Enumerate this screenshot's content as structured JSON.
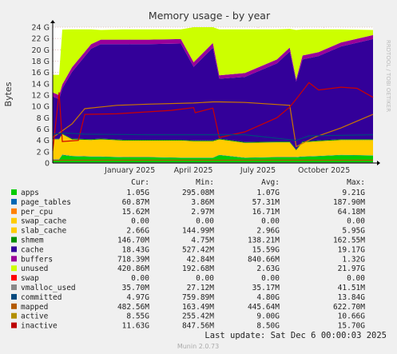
{
  "chart_data": {
    "type": "area",
    "title": "Memory usage - by year",
    "ylabel": "Bytes",
    "watermark": "RRDTOOL / TOBI OETIKER",
    "ylim": [
      0,
      24
    ],
    "y_ticks": [
      "0",
      "2 G",
      "4 G",
      "6 G",
      "8 G",
      "10 G",
      "12 G",
      "14 G",
      "16 G",
      "18 G",
      "20 G",
      "22 G",
      "24 G"
    ],
    "y_tick_values": [
      0,
      2,
      4,
      6,
      8,
      10,
      12,
      14,
      16,
      18,
      20,
      22,
      24
    ],
    "x_ticks": [
      {
        "label": "January 2025",
        "pos": 0.241
      },
      {
        "label": "April 2025",
        "pos": 0.439
      },
      {
        "label": "July 2025",
        "pos": 0.641
      },
      {
        "label": "October 2025",
        "pos": 0.847
      }
    ],
    "stacked_points_x": [
      0,
      0.02,
      0.03,
      0.06,
      0.12,
      0.15,
      0.22,
      0.3,
      0.4,
      0.44,
      0.5,
      0.52,
      0.6,
      0.7,
      0.74,
      0.76,
      0.78,
      0.83,
      0.9,
      1
    ],
    "stacked_series": [
      {
        "key": "apps",
        "color": "#00cc00",
        "values": [
          0.6,
          0.6,
          1.4,
          1.2,
          1.1,
          1.1,
          1.0,
          1.0,
          0.9,
          0.9,
          0.9,
          1.4,
          0.9,
          1.0,
          1.0,
          1.0,
          1.1,
          1.2,
          1.4,
          1.3
        ]
      },
      {
        "key": "page_tables",
        "color": "#0066b3",
        "values": [
          0.08,
          0.08,
          0.08,
          0.06,
          0.06,
          0.06,
          0.06,
          0.06,
          0.06,
          0.06,
          0.06,
          0.06,
          0.06,
          0.06,
          0.06,
          0.06,
          0.06,
          0.06,
          0.06,
          0.06
        ]
      },
      {
        "key": "slab_cache",
        "color": "#ffcc00",
        "values": [
          3.5,
          3.5,
          3.6,
          2.9,
          2.9,
          3.0,
          2.9,
          2.9,
          3.0,
          2.9,
          2.9,
          2.7,
          2.6,
          2.6,
          2.6,
          1.2,
          2.5,
          2.6,
          2.6,
          2.7
        ]
      },
      {
        "key": "shmem",
        "color": "#008f00",
        "values": [
          0.1,
          0.1,
          0.1,
          0.14,
          0.14,
          0.14,
          0.14,
          0.14,
          0.14,
          0.14,
          0.14,
          0.14,
          0.14,
          0.14,
          0.14,
          0.14,
          0.14,
          0.14,
          0.14,
          0.14
        ]
      },
      {
        "key": "cache",
        "color": "#330099",
        "values": [
          7.5,
          7.0,
          8.0,
          11.8,
          16.0,
          16.7,
          16.9,
          16.9,
          17.0,
          13.0,
          16.4,
          10.6,
          11.5,
          13.8,
          15.9,
          12.0,
          14.5,
          14.9,
          16.4,
          17.7
        ]
      },
      {
        "key": "buffers",
        "color": "#990099",
        "values": [
          0.7,
          0.7,
          0.7,
          0.8,
          0.8,
          0.8,
          0.8,
          0.8,
          0.8,
          0.8,
          0.8,
          0.6,
          0.7,
          0.7,
          0.7,
          0.4,
          0.7,
          0.7,
          0.7,
          0.7
        ]
      },
      {
        "key": "unused",
        "color": "#ccff00",
        "values": [
          3.1,
          3.6,
          9.7,
          6.7,
          2.6,
          1.7,
          1.8,
          1.8,
          1.7,
          6.7,
          3.2,
          8.1,
          7.7,
          5.3,
          3.3,
          8.7,
          4.6,
          4.0,
          2.3,
          0.9
        ]
      }
    ],
    "line_series": [
      {
        "key": "active",
        "color": "#cc7700",
        "points": [
          [
            0,
            4.5
          ],
          [
            0.06,
            6.9
          ],
          [
            0.1,
            9.6
          ],
          [
            0.2,
            10.2
          ],
          [
            0.3,
            10.4
          ],
          [
            0.44,
            10.6
          ],
          [
            0.5,
            10.8
          ],
          [
            0.52,
            10.8
          ],
          [
            0.6,
            10.7
          ],
          [
            0.74,
            10.2
          ],
          [
            0.76,
            2.9
          ],
          [
            0.82,
            4.6
          ],
          [
            0.9,
            6.2
          ],
          [
            1,
            8.6
          ]
        ]
      },
      {
        "key": "inactive",
        "color": "#cc0000",
        "points": [
          [
            0,
            2.1
          ],
          [
            0.02,
            12.5
          ],
          [
            0.03,
            3.8
          ],
          [
            0.08,
            4.0
          ],
          [
            0.1,
            8.6
          ],
          [
            0.2,
            8.7
          ],
          [
            0.37,
            9.3
          ],
          [
            0.44,
            9.8
          ],
          [
            0.445,
            8.9
          ],
          [
            0.5,
            9.7
          ],
          [
            0.52,
            4.5
          ],
          [
            0.6,
            5.5
          ],
          [
            0.7,
            8.0
          ],
          [
            0.74,
            9.9
          ],
          [
            0.76,
            11.3
          ],
          [
            0.8,
            14.2
          ],
          [
            0.83,
            12.9
          ],
          [
            0.9,
            13.4
          ],
          [
            0.95,
            13.2
          ],
          [
            1,
            11.6
          ]
        ]
      },
      {
        "key": "committed",
        "color": "#00487d",
        "points": [
          [
            0,
            5.1
          ],
          [
            0.04,
            5.3
          ],
          [
            0.1,
            5.1
          ],
          [
            0.3,
            5.0
          ],
          [
            0.5,
            5.0
          ],
          [
            0.6,
            5.0
          ],
          [
            0.76,
            4.0
          ],
          [
            0.8,
            4.8
          ],
          [
            1,
            5.0
          ]
        ]
      },
      {
        "key": "mapped",
        "color": "#b35a00",
        "points": [
          [
            0,
            0.5
          ],
          [
            0.05,
            0.5
          ],
          [
            1,
            0.5
          ]
        ]
      },
      {
        "key": "vmalloc_used",
        "color": "#888888",
        "points": [
          [
            0,
            0.04
          ],
          [
            1,
            0.04
          ]
        ]
      }
    ],
    "legend_headers": [
      "Cur:",
      "Min:",
      "Avg:",
      "Max:"
    ],
    "legend": [
      {
        "name": "apps",
        "color": "#00cc00",
        "cur": "1.05G",
        "min": "295.08M",
        "avg": "1.07G",
        "max": "9.21G"
      },
      {
        "name": "page_tables",
        "color": "#0066b3",
        "cur": "60.87M",
        "min": "3.86M",
        "avg": "57.31M",
        "max": "187.90M"
      },
      {
        "name": "per_cpu",
        "color": "#ff8000",
        "cur": "15.62M",
        "min": "2.97M",
        "avg": "16.71M",
        "max": "64.18M"
      },
      {
        "name": "swap_cache",
        "color": "#ffcc00",
        "cur": "0.00",
        "min": "0.00",
        "avg": "0.00",
        "max": "0.00"
      },
      {
        "name": "slab_cache",
        "color": "#ffcc00",
        "cur": "2.66G",
        "min": "144.99M",
        "avg": "2.96G",
        "max": "5.95G"
      },
      {
        "name": "shmem",
        "color": "#008f00",
        "cur": "146.70M",
        "min": "4.75M",
        "avg": "138.21M",
        "max": "162.55M"
      },
      {
        "name": "cache",
        "color": "#330099",
        "cur": "18.43G",
        "min": "527.42M",
        "avg": "15.59G",
        "max": "19.17G"
      },
      {
        "name": "buffers",
        "color": "#990099",
        "cur": "718.39M",
        "min": "42.84M",
        "avg": "840.66M",
        "max": "1.32G"
      },
      {
        "name": "unused",
        "color": "#ccff00",
        "cur": "420.86M",
        "min": "192.68M",
        "avg": "2.63G",
        "max": "21.97G"
      },
      {
        "name": "swap",
        "color": "#ff0000",
        "cur": "0.00",
        "min": "0.00",
        "avg": "0.00",
        "max": "0.00"
      },
      {
        "name": "vmalloc_used",
        "color": "#888888",
        "cur": "35.70M",
        "min": "27.12M",
        "avg": "35.17M",
        "max": "41.51M"
      },
      {
        "name": "committed",
        "color": "#00487d",
        "cur": "4.97G",
        "min": "759.89M",
        "avg": "4.80G",
        "max": "13.84G"
      },
      {
        "name": "mapped",
        "color": "#b35a00",
        "cur": "482.56M",
        "min": "163.49M",
        "avg": "445.64M",
        "max": "622.70M"
      },
      {
        "name": "active",
        "color": "#b38f00",
        "cur": "8.55G",
        "min": "255.42M",
        "avg": "9.00G",
        "max": "10.66G"
      },
      {
        "name": "inactive",
        "color": "#bd0000",
        "cur": "11.63G",
        "min": "847.56M",
        "avg": "8.50G",
        "max": "15.70G"
      }
    ],
    "last_update": "Last update: Sat Dec  6 00:00:03 2025",
    "footer": "Munin 2.0.73"
  }
}
